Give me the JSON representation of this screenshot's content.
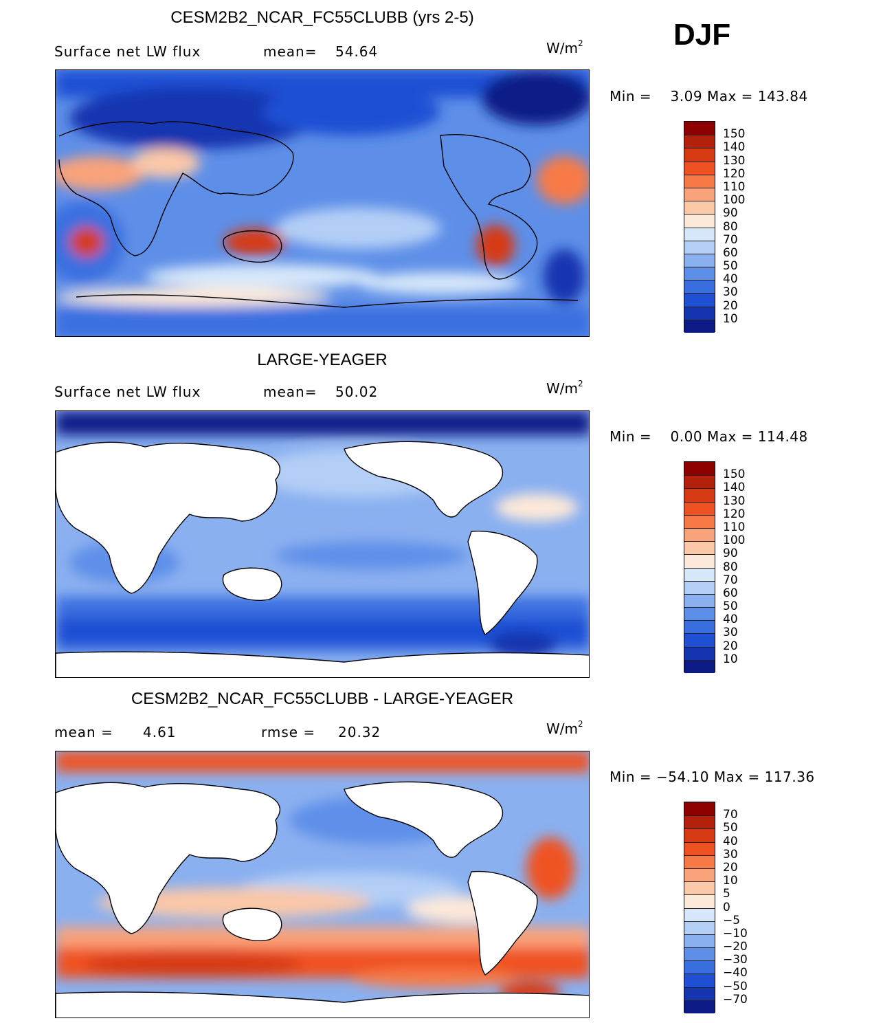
{
  "season": "DJF",
  "panels": [
    {
      "id": "model",
      "title": "CESM2B2_NCAR_FC55CLUBB (yrs 2-5)",
      "left_label": "Surface net LW flux",
      "stat1_label": "mean=",
      "stat1_value": "54.64",
      "units_base": "W/m",
      "units_exp": "2",
      "min_label": "Min =",
      "min_value": "3.09",
      "max_label": "Max =",
      "max_value": "143.84",
      "colorbar": {
        "levels": [
          "150",
          "140",
          "130",
          "120",
          "110",
          "100",
          "90",
          "80",
          "70",
          "60",
          "50",
          "40",
          "30",
          "20",
          "10"
        ],
        "colors": [
          "#8c0000",
          "#b3200c",
          "#d63a12",
          "#ef5222",
          "#f77a46",
          "#f9a37a",
          "#fbc8a8",
          "#fde9d9",
          "#d7e8fa",
          "#b3cff6",
          "#8ab0f0",
          "#5e8fe8",
          "#3a6fe0",
          "#1f50d4",
          "#1434b0",
          "#0c1a86"
        ]
      }
    },
    {
      "id": "obs",
      "title": "LARGE-YEAGER",
      "left_label": "Surface net LW flux",
      "stat1_label": "mean=",
      "stat1_value": "50.02",
      "units_base": "W/m",
      "units_exp": "2",
      "min_label": "Min =",
      "min_value": "0.00",
      "max_label": "Max =",
      "max_value": "114.48",
      "colorbar": {
        "levels": [
          "150",
          "140",
          "130",
          "120",
          "110",
          "100",
          "90",
          "80",
          "70",
          "60",
          "50",
          "40",
          "30",
          "20",
          "10"
        ],
        "colors": [
          "#8c0000",
          "#b3200c",
          "#d63a12",
          "#ef5222",
          "#f77a46",
          "#f9a37a",
          "#fbc8a8",
          "#fde9d9",
          "#d7e8fa",
          "#b3cff6",
          "#8ab0f0",
          "#5e8fe8",
          "#3a6fe0",
          "#1f50d4",
          "#1434b0",
          "#0c1a86"
        ]
      }
    },
    {
      "id": "diff",
      "title": "CESM2B2_NCAR_FC55CLUBB - LARGE-YEAGER",
      "stat1_label": "mean =",
      "stat1_value": "4.61",
      "stat2_label": "rmse =",
      "stat2_value": "20.32",
      "units_base": "W/m",
      "units_exp": "2",
      "min_label": "Min =",
      "min_value": "−54.10",
      "max_label": "Max =",
      "max_value": "117.36",
      "colorbar": {
        "levels": [
          "70",
          "50",
          "40",
          "30",
          "20",
          "10",
          "5",
          "0",
          "−5",
          "−10",
          "−20",
          "−30",
          "−40",
          "−50",
          "−70"
        ],
        "colors": [
          "#8c0000",
          "#b3200c",
          "#d63a12",
          "#ef5222",
          "#f77a46",
          "#f9a37a",
          "#fbc8a8",
          "#fde9d9",
          "#d7e8fa",
          "#b3cff6",
          "#8ab0f0",
          "#5e8fe8",
          "#3a6fe0",
          "#1f50d4",
          "#1434b0",
          "#0c1a86"
        ]
      }
    }
  ]
}
